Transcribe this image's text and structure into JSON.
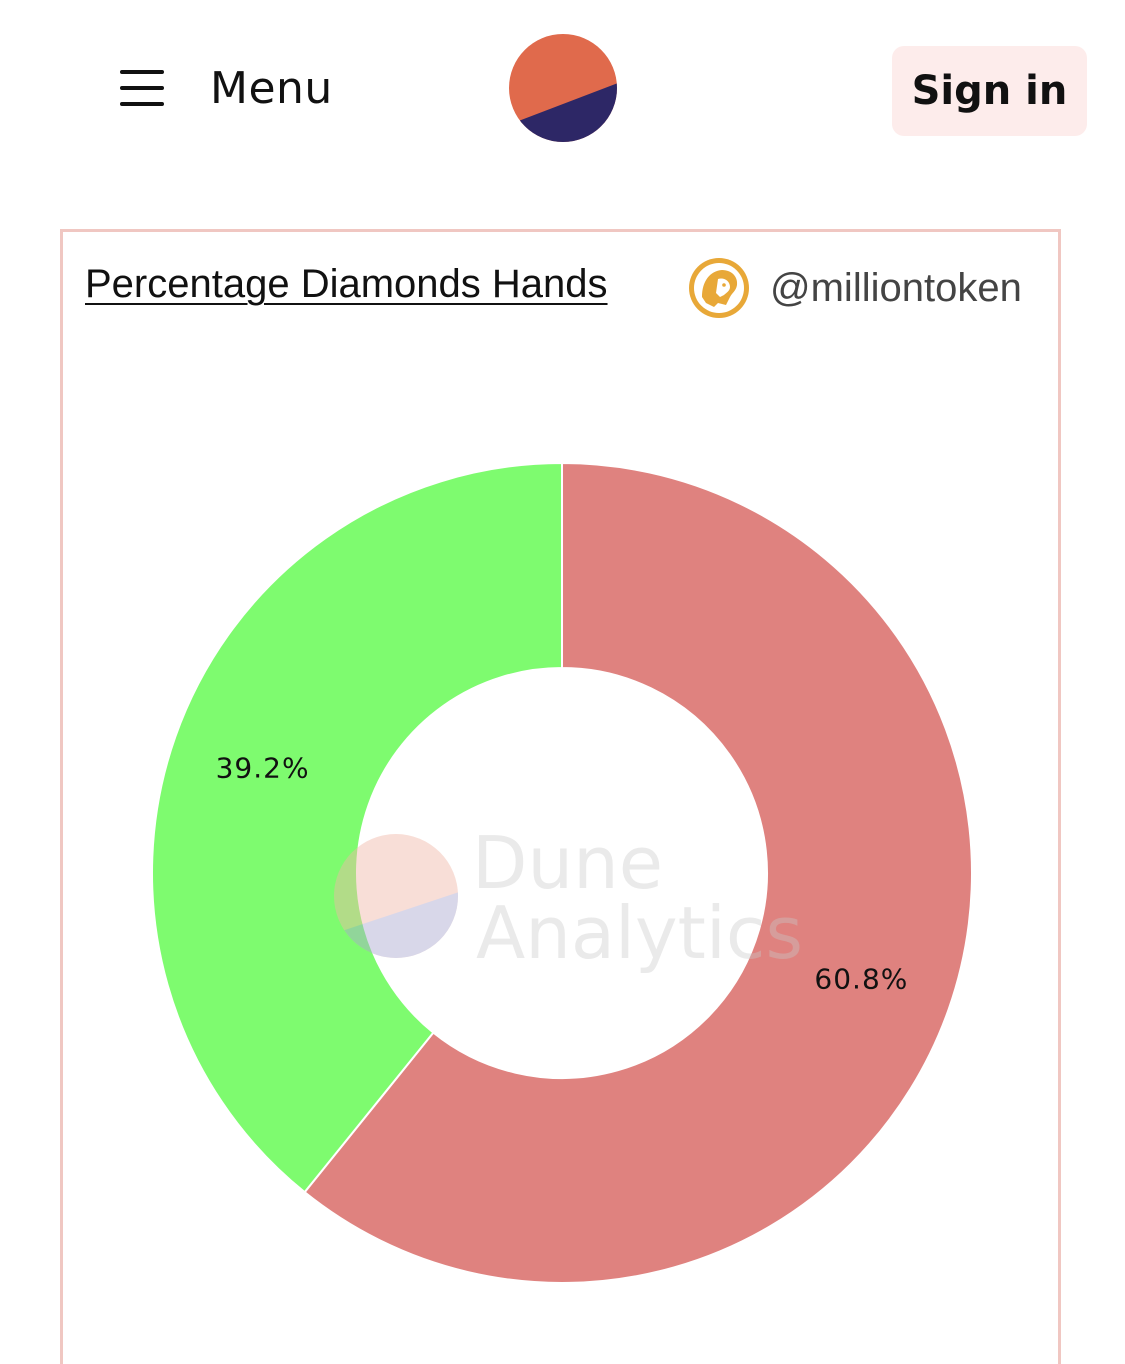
{
  "header": {
    "menu_label": "Menu",
    "sign_in_label": "Sign in",
    "logo_colors": {
      "top": "#e06a4c",
      "bottom": "#2d2766"
    }
  },
  "card": {
    "title": "Percentage Diamonds Hands",
    "author_handle": "@milliontoken",
    "author_avatar_icon": "lion-avatar-icon",
    "border_color": "#f0c7c2"
  },
  "watermark": {
    "line1": "Dune",
    "line2": "Analytics"
  },
  "chart_data": {
    "type": "pie",
    "donut": true,
    "slices": [
      {
        "value": 60.8,
        "label": "60.8%",
        "color": "#df827f"
      },
      {
        "value": 39.2,
        "label": "39.2%",
        "color": "#7efb6f"
      }
    ],
    "start": "top",
    "direction": "clockwise",
    "legend": "none"
  }
}
